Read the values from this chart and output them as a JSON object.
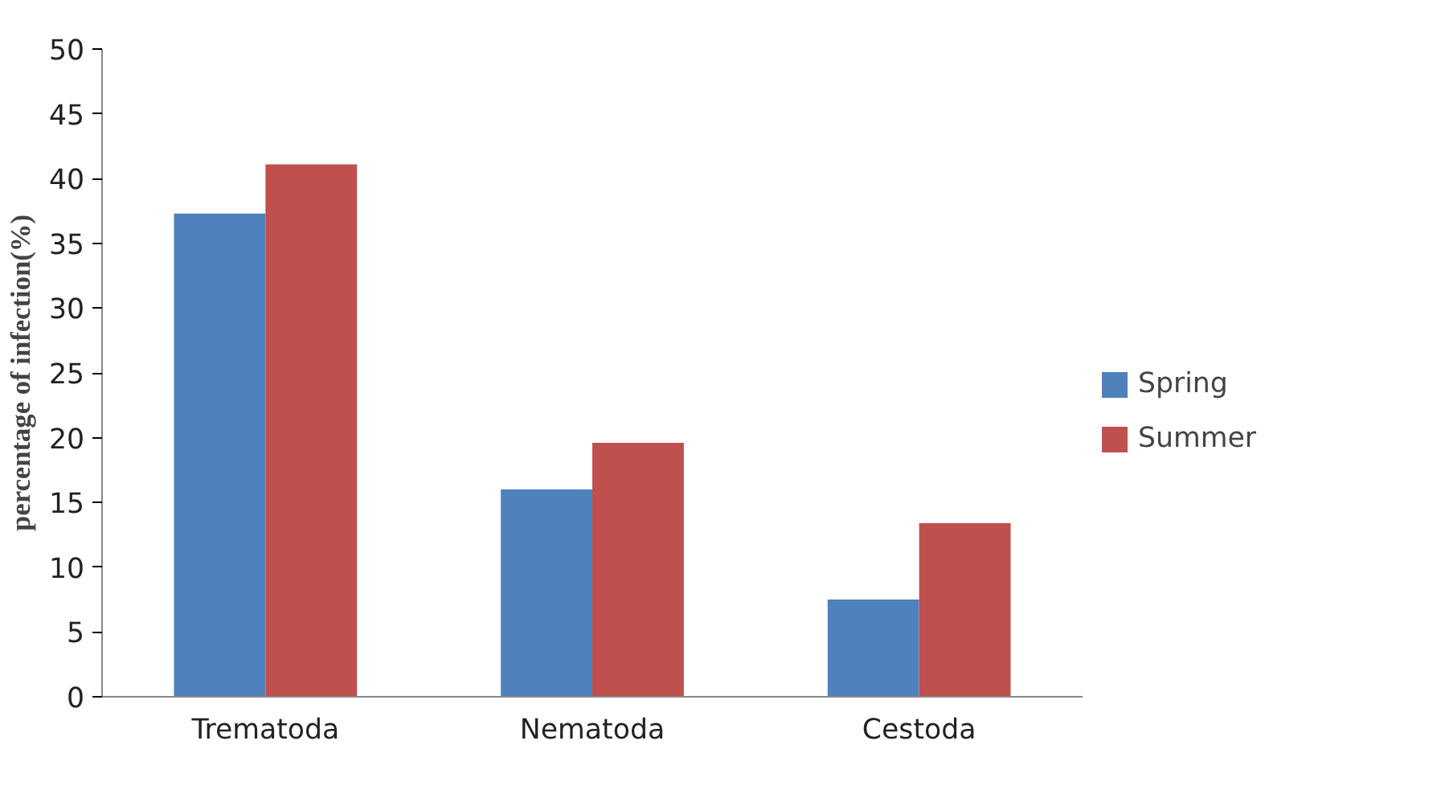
{
  "chart_data": {
    "type": "bar",
    "ylabel": "percentage of infection(%)",
    "categories": [
      "Trematoda",
      "Nematoda",
      "Cestoda"
    ],
    "series": [
      {
        "name": "Spring",
        "color": "#4f81bd",
        "values": [
          37.3,
          16.0,
          7.5
        ]
      },
      {
        "name": "Summer",
        "color": "#c0504d",
        "values": [
          41.1,
          19.6,
          13.4
        ]
      }
    ],
    "ylim": [
      0,
      50
    ],
    "yticks": [
      0,
      5,
      10,
      15,
      20,
      25,
      30,
      35,
      40,
      45,
      50
    ],
    "grid": false,
    "legend": "right"
  }
}
